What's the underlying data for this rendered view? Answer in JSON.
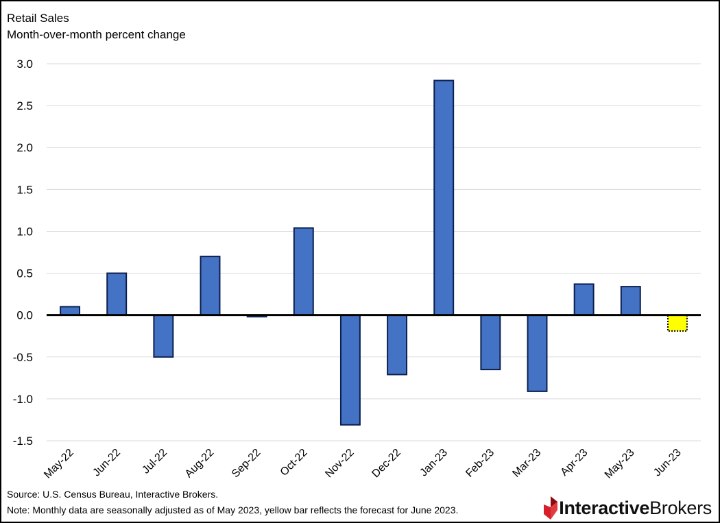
{
  "header": {
    "title": "Retail Sales",
    "subtitle": "Month-over-month percent change"
  },
  "footer": {
    "source": "Source: U.S. Census Bureau, Interactive Brokers.",
    "note": "Note: Monthly data are seasonally adjusted as of May 2023, yellow bar reflects the forecast for June 2023.",
    "logo_bold": "Interactive",
    "logo_light": "Brokers"
  },
  "colors": {
    "bar_fill": "#4472C4",
    "bar_stroke": "#0B1F4E",
    "forecast_fill": "#FFFF00",
    "forecast_stroke": "#000000",
    "grid": "#D9D9D9",
    "logo_red": "#D81E28"
  },
  "chart_data": {
    "type": "bar",
    "title": "Retail Sales",
    "subtitle": "Month-over-month percent change",
    "categories": [
      "May-22",
      "Jun-22",
      "Jul-22",
      "Aug-22",
      "Sep-22",
      "Oct-22",
      "Nov-22",
      "Dec-22",
      "Jan-23",
      "Feb-23",
      "Mar-23",
      "Apr-23",
      "May-23",
      "Jun-23"
    ],
    "values": [
      0.1,
      0.5,
      -0.5,
      0.7,
      -0.02,
      1.04,
      -1.31,
      -0.71,
      2.8,
      -0.65,
      -0.91,
      0.37,
      0.34,
      -0.19
    ],
    "forecast_index": 13,
    "ylim": [
      -1.5,
      3.0
    ],
    "yticks": [
      3.0,
      2.5,
      2.0,
      1.5,
      1.0,
      0.5,
      0.0,
      -0.5,
      -1.0,
      -1.5
    ],
    "ytick_labels": [
      "3.0",
      "2.5",
      "2.0",
      "1.5",
      "1.0",
      "0.5",
      "0.0",
      "-0.5",
      "-1.0",
      "-1.5"
    ],
    "grid": true,
    "legend": "none"
  }
}
